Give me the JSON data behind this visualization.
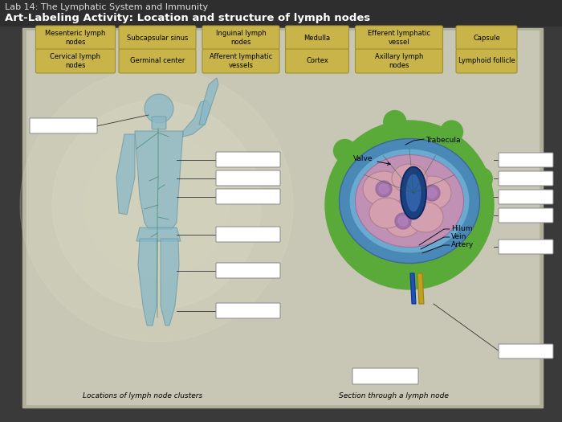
{
  "title_lab": "Lab 14: The Lymphatic System and Immunity",
  "title_activity": "Art-Labeling Activity: Location and structure of lymph nodes",
  "bg_dark": "#3a3a3a",
  "bg_border": "#b0b09a",
  "bg_main": "#c8c7b5",
  "bg_main2": "#d2d1bf",
  "term_bg": "#c8b448",
  "term_edge": "#a09030",
  "blank_bg": "#ffffff",
  "blank_edge": "#888888",
  "terms_row1": [
    "Mesenteric lymph\nnodes",
    "Subcapsular sinus",
    "Inguinal lymph\nnodes",
    "Medulla",
    "Efferent lymphatic\nvessel",
    "Capsule"
  ],
  "terms_row2": [
    "Cervical lymph\nnodes",
    "Germinal center",
    "Afferent lymphatic\nvessels",
    "Cortex",
    "Axillary lymph\nnodes",
    "Lymphoid follicle"
  ],
  "annotation_valve": "Valve",
  "annotation_trabecula": "Trabecula",
  "annotation_hilum": "Hilum",
  "annotation_vein": "Vein",
  "annotation_artery": "Artery",
  "caption_left": "Locations of lymph node clusters",
  "caption_right": "Section through a lymph node",
  "title_fontsize": 8,
  "activity_fontsize": 9.5,
  "term_fontsize": 6,
  "annot_fontsize": 6.5
}
